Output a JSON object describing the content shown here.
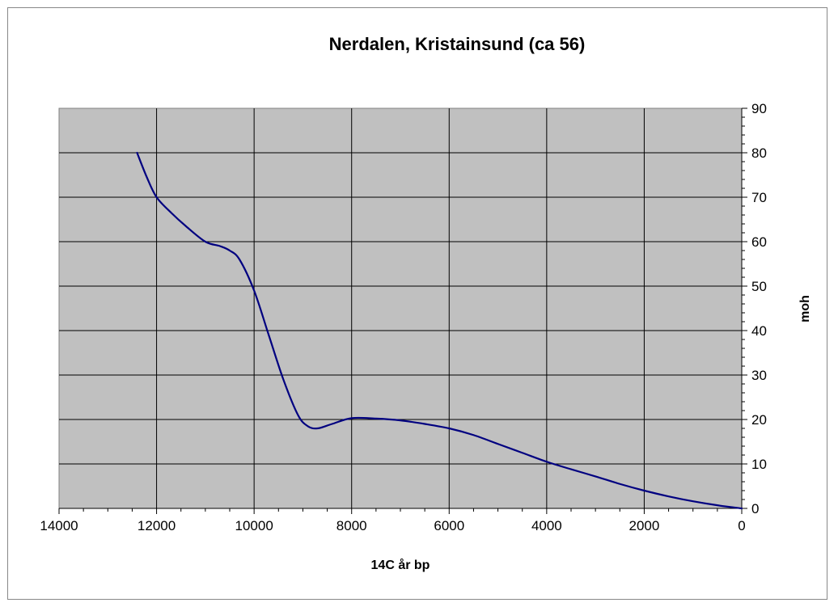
{
  "chart_data": {
    "type": "line",
    "title": "Nerdalen, Kristainsund (ca 56)",
    "xlabel": "14C år bp",
    "ylabel": "moh",
    "xlim": [
      14000,
      0
    ],
    "ylim": [
      0,
      90
    ],
    "x_reversed": true,
    "y_axis_side": "right",
    "grid": true,
    "legend": "none",
    "x_ticks": [
      "14000",
      "12000",
      "10000",
      "8000",
      "6000",
      "4000",
      "2000",
      "0"
    ],
    "y_ticks": [
      "0",
      "10",
      "20",
      "30",
      "40",
      "50",
      "60",
      "70",
      "80",
      "90"
    ],
    "plot_background": "#c0c0c0",
    "grid_color": "#000000",
    "series": [
      {
        "color": "#000080",
        "x": [
          12400,
          12200,
          12000,
          11700,
          11400,
          11000,
          10700,
          10500,
          10300,
          10000,
          9700,
          9400,
          9100,
          8900,
          8700,
          8400,
          8000,
          7500,
          7000,
          6500,
          6000,
          5500,
          5000,
          4500,
          4000,
          3500,
          3000,
          2500,
          2000,
          1500,
          1000,
          500,
          0
        ],
        "y": [
          80,
          74.5,
          70,
          66.5,
          63.5,
          60,
          59,
          58,
          56,
          49,
          39,
          29,
          21,
          18.5,
          18,
          19,
          20.3,
          20.2,
          19.8,
          19,
          18,
          16.5,
          14.5,
          12.5,
          10.5,
          8.8,
          7.2,
          5.5,
          4,
          2.7,
          1.6,
          0.7,
          0
        ]
      }
    ]
  }
}
